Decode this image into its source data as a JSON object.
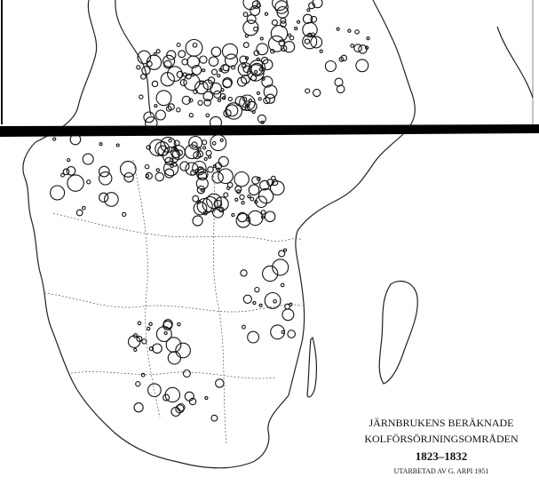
{
  "map": {
    "title_lines": [
      "JÄRNBRUKENS BERÄKNADE",
      "KOLFÖRSÖRJNINGSOMRÅDEN"
    ],
    "period": "1823–1832",
    "credit": "UTARBETAD AV G. ARPI 1951"
  }
}
